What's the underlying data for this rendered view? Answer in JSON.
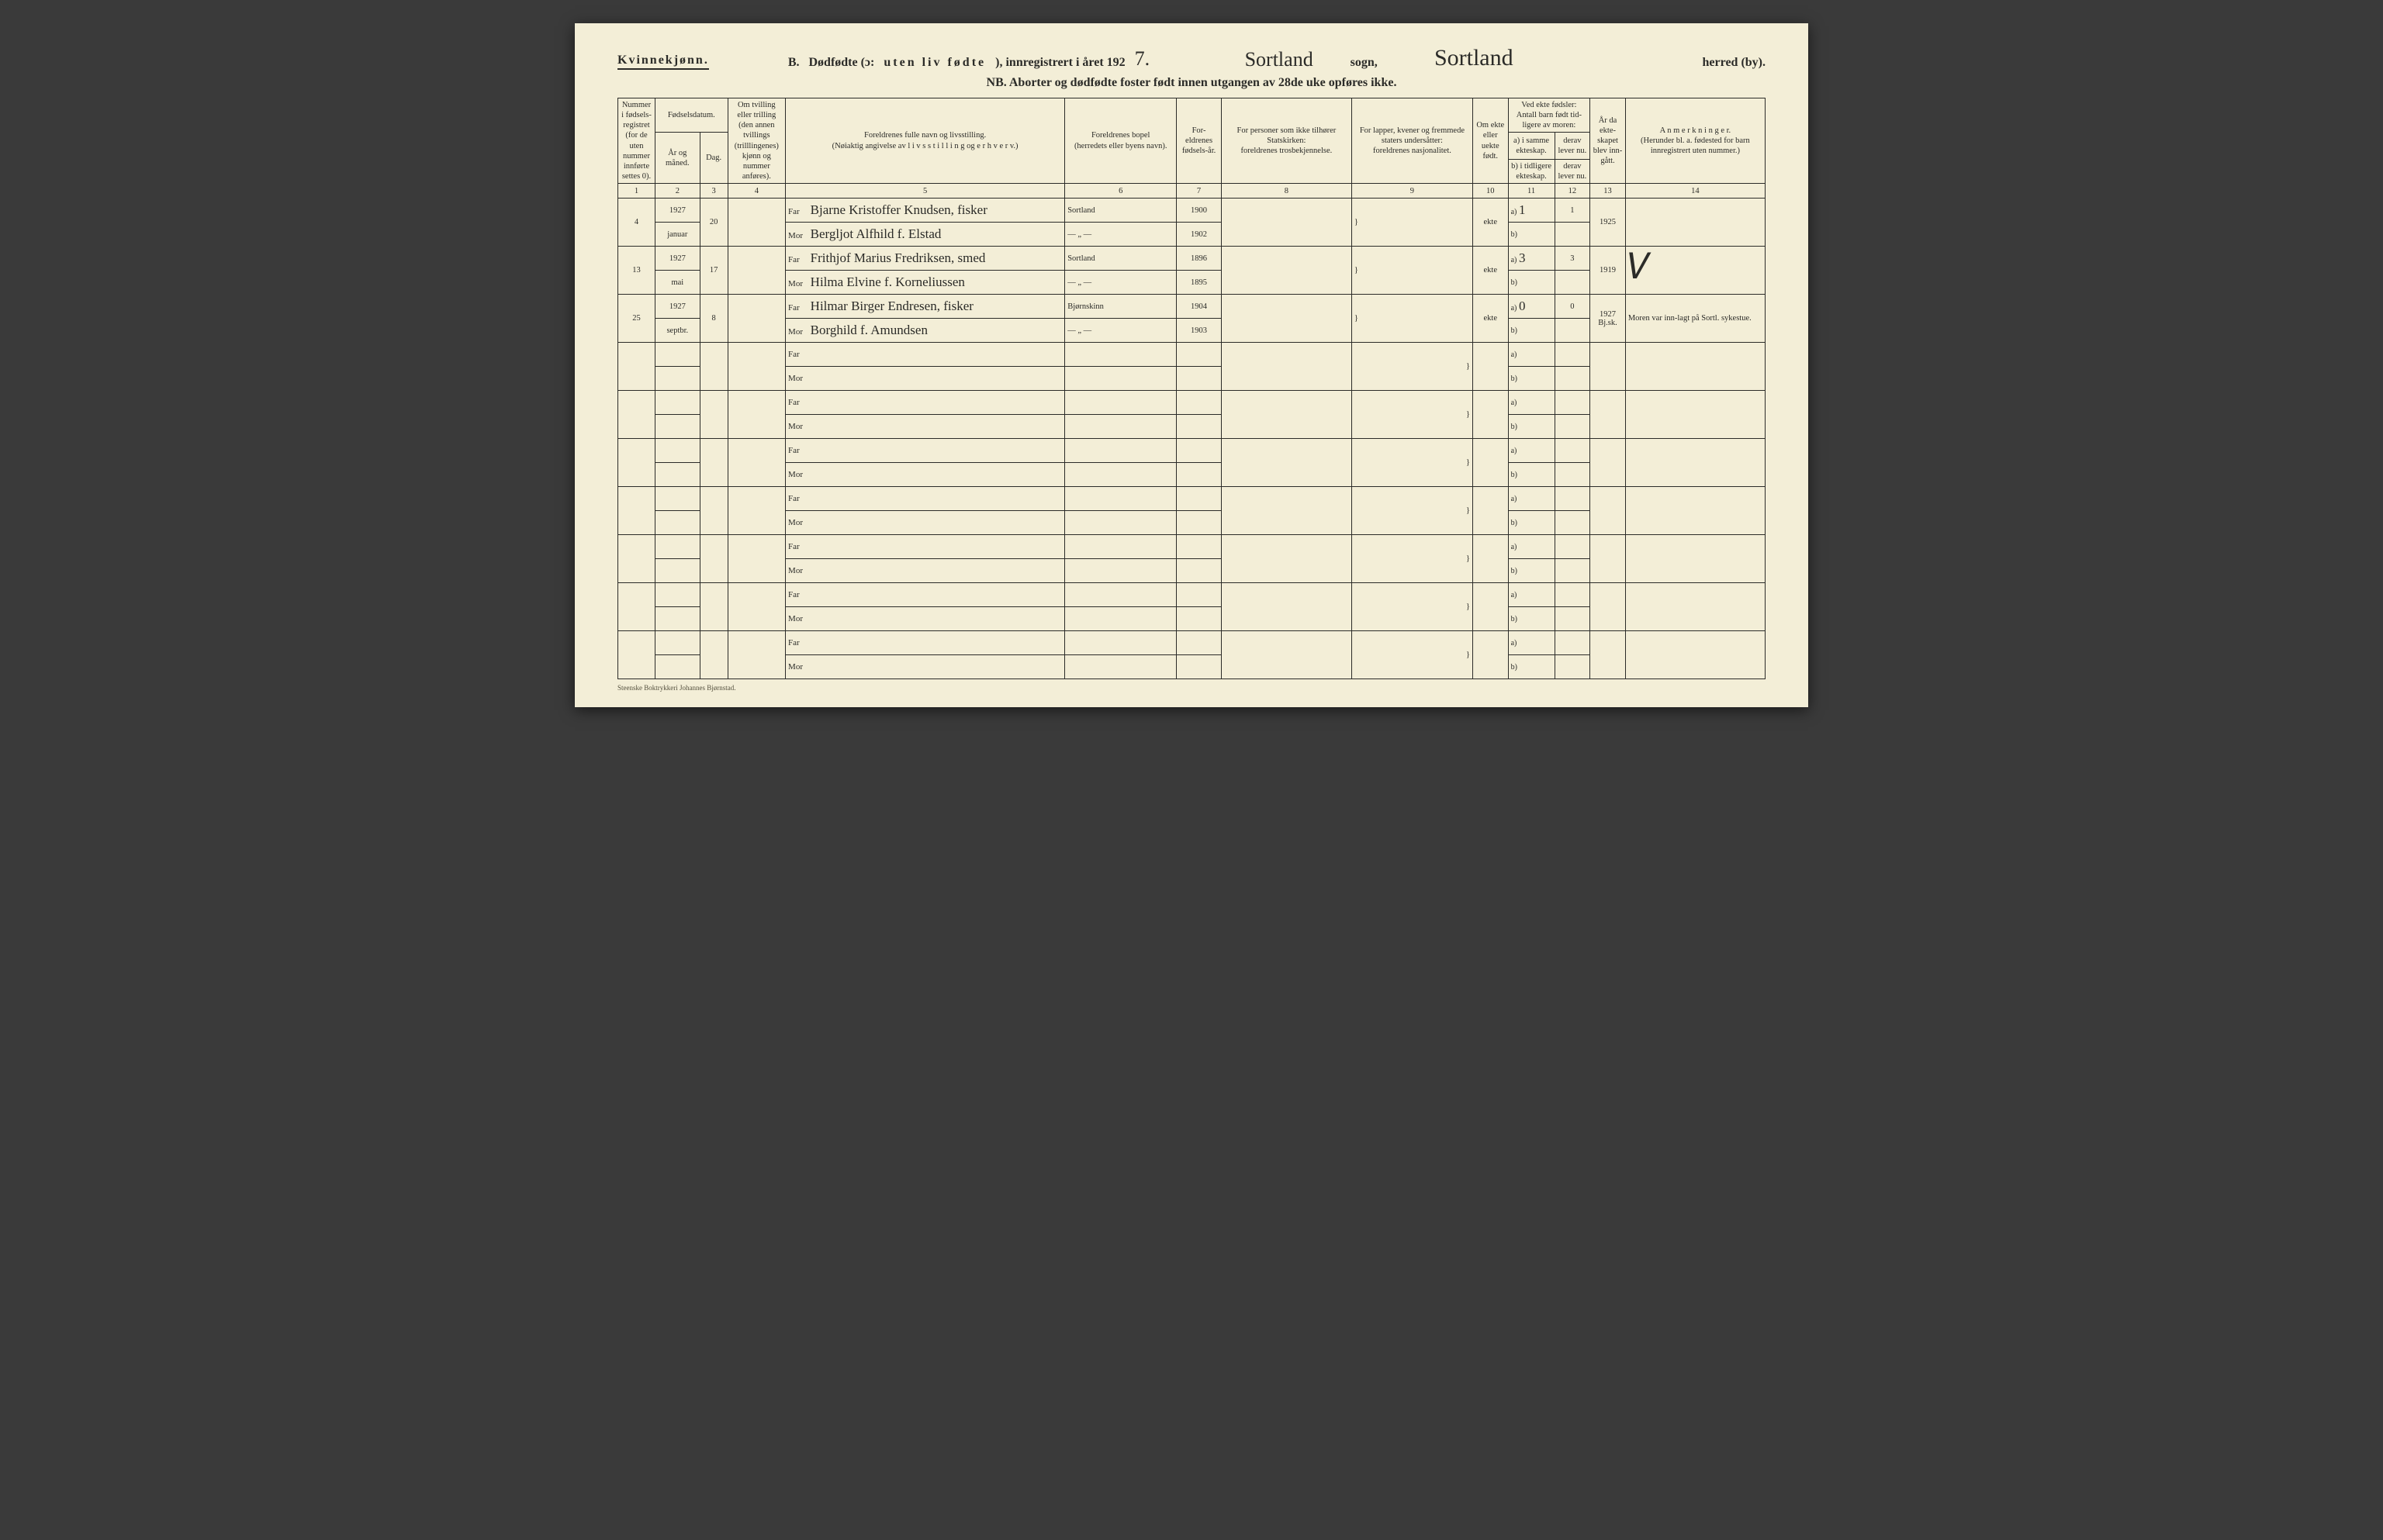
{
  "header": {
    "kvinne": "Kvinnekjønn.",
    "section_b": "B.",
    "title_main": "Dødfødte (ɔ:",
    "title_spaced": "uten liv fødte",
    "title_tail": "), innregistrert i året 192",
    "year_suffix": "7.",
    "sogn_value": "Sortland",
    "sogn_label": "sogn,",
    "herred_value": "Sortland",
    "herred_label": "herred (by).",
    "nb": "NB.  Aborter og dødfødte foster født innen utgangen av 28de uke opføres ikke."
  },
  "colheads": {
    "c1": "Nummer i fødsels-registret (for de uten nummer innførte settes 0).",
    "c2_top": "Fødselsdatum.",
    "c2a": "År og måned.",
    "c2b": "Dag.",
    "c4": "Om tvilling eller trilling (den annen tvillings (trilllingenes) kjønn og nummer anføres).",
    "c5a": "Foreldrenes fulle navn og livsstilling.",
    "c5b": "(Nøiaktig angivelse av  l i v s s t i l l i n g  og  e r h v e r v.)",
    "c6a": "Foreldrenes bopel",
    "c6b": "(herredets eller byens navn).",
    "c7": "For-eldrenes fødsels-år.",
    "c8a": "For personer som ikke tilhører Statskirken:",
    "c8b": "foreldrenes trosbekjennelse.",
    "c9a": "For lapper, kvener og fremmede staters undersåtter:",
    "c9b": "foreldrenes nasjonalitet.",
    "c10": "Om ekte eller uekte født.",
    "c11_top": "Ved ekte fødsler: Antall barn født tid-ligere av moren:",
    "c11a": "a) i samme ekteskap.",
    "c11b": "b) i tidligere ekteskap.",
    "c12a": "derav lever nu.",
    "c12b": "derav lever nu.",
    "c13": "År da ekte-skapet blev inn-gått.",
    "c14a": "A n m e r k n i n g e r.",
    "c14b": "(Herunder bl. a. fødested for barn innregistrert uten nummer.)"
  },
  "colnums": [
    "1",
    "2",
    "3",
    "4",
    "5",
    "6",
    "7",
    "8",
    "9",
    "10",
    "11",
    "12",
    "13",
    "14"
  ],
  "labels": {
    "far": "Far",
    "mor": "Mor",
    "a": "a)",
    "b": "b)"
  },
  "rows": [
    {
      "no": "4",
      "year": "1927",
      "month": "januar",
      "day": "20",
      "far": "Bjarne Kristoffer Knudsen, fisker",
      "mor": "Bergljot Alfhild f. Elstad",
      "bopel_far": "Sortland",
      "bopel_mor": "— „ —",
      "faar_far": "1900",
      "faar_mor": "1902",
      "ekte": "ekte",
      "a_same": "1",
      "a_lever": "1",
      "aar_ekt": "1925",
      "anm": ""
    },
    {
      "no": "13",
      "year": "1927",
      "month": "mai",
      "day": "17",
      "far": "Frithjof Marius Fredriksen, smed",
      "mor": "Hilma Elvine f. Korneliussen",
      "bopel_far": "Sortland",
      "bopel_mor": "— „ —",
      "faar_far": "1896",
      "faar_mor": "1895",
      "ekte": "ekte",
      "a_same": "3",
      "a_lever": "3",
      "aar_ekt": "1919",
      "anm": "✓"
    },
    {
      "no": "25",
      "year": "1927",
      "month": "septbr.",
      "day": "8",
      "far": "Hilmar Birger Endresen, fisker",
      "mor": "Borghild f. Amundsen",
      "bopel_far": "Bjørnskinn",
      "bopel_mor": "— „ —",
      "faar_far": "1904",
      "faar_mor": "1903",
      "ekte": "ekte",
      "a_same": "0",
      "a_lever": "0",
      "aar_ekt": "1927 Bj.sk.",
      "anm": "Moren var inn-lagt på Sortl. sykestue."
    }
  ],
  "empty_rows": 7,
  "footer": "Steenske Boktrykkeri Johannes Bjørnstad.",
  "style": {
    "page_bg": "#f3eed7",
    "ink": "#2b2b28",
    "faint_line": "#9a9578"
  }
}
